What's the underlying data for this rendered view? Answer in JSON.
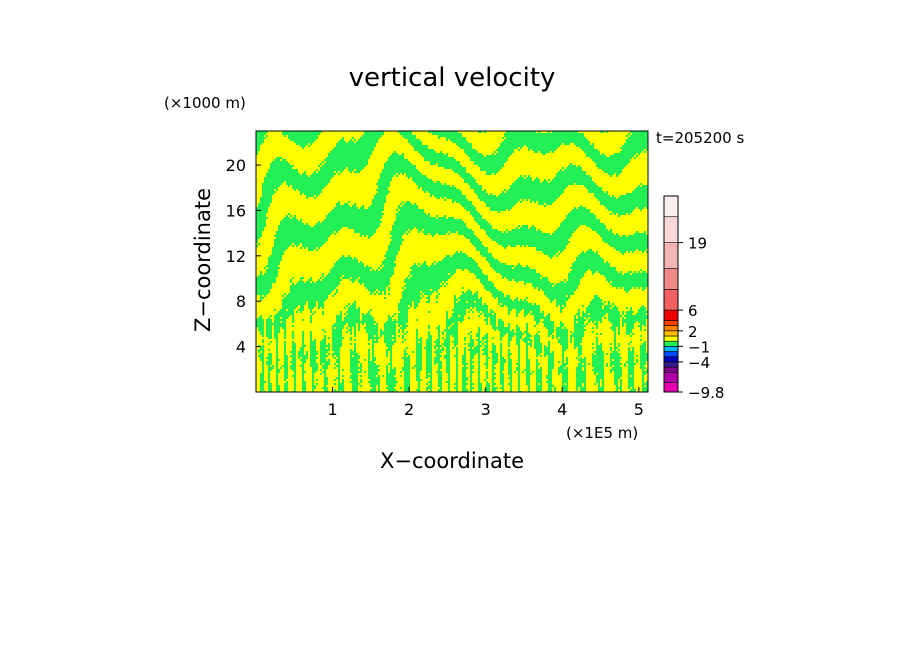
{
  "chart_data": {
    "type": "heatmap",
    "title": "vertical velocity",
    "xlabel": "X−coordinate",
    "ylabel": "Z−coordinate",
    "x_multiplier": "(×1E5 m)",
    "y_multiplier": "(×1000 m)",
    "time_label": "t=205200 s",
    "xlim": [
      0,
      5.12
    ],
    "ylim": [
      0,
      23
    ],
    "x_ticks": [
      {
        "value": 1,
        "label": "1"
      },
      {
        "value": 2,
        "label": "2"
      },
      {
        "value": 3,
        "label": "3"
      },
      {
        "value": 4,
        "label": "4"
      },
      {
        "value": 5,
        "label": "5"
      }
    ],
    "y_ticks": [
      {
        "value": 4,
        "label": "4"
      },
      {
        "value": 8,
        "label": "8"
      },
      {
        "value": 12,
        "label": "12"
      },
      {
        "value": 16,
        "label": "16"
      },
      {
        "value": 20,
        "label": "20"
      }
    ],
    "field_colors": {
      "positive": "#ffff00",
      "negative": "#22ee55"
    },
    "colorbar": {
      "min_label": "−9.8",
      "labels": [
        {
          "value": -9.8,
          "label": "−9.8"
        },
        {
          "value": -4,
          "label": "−4"
        },
        {
          "value": -1,
          "label": "−1"
        },
        {
          "value": 2,
          "label": "2"
        },
        {
          "value": 6,
          "label": "6"
        },
        {
          "value": 19,
          "label": "19"
        }
      ],
      "levels": [
        {
          "from": -9.8,
          "to": -8,
          "color": "#e800b0"
        },
        {
          "from": -8,
          "to": -6,
          "color": "#b000a8"
        },
        {
          "from": -6,
          "to": -5,
          "color": "#80008a"
        },
        {
          "from": -5,
          "to": -4,
          "color": "#3a1890"
        },
        {
          "from": -4,
          "to": -3,
          "color": "#0000c0"
        },
        {
          "from": -3,
          "to": -2,
          "color": "#0048ff"
        },
        {
          "from": -2,
          "to": -1,
          "color": "#00b8ff"
        },
        {
          "from": -1,
          "to": 0,
          "color": "#22ee55"
        },
        {
          "from": 0,
          "to": 1,
          "color": "#ffff00"
        },
        {
          "from": 1,
          "to": 2,
          "color": "#ffc000"
        },
        {
          "from": 2,
          "to": 3,
          "color": "#ff8000"
        },
        {
          "from": 3,
          "to": 4,
          "color": "#ff4000"
        },
        {
          "from": 4,
          "to": 6,
          "color": "#ee0000"
        },
        {
          "from": 6,
          "to": 10,
          "color": "#f06060"
        },
        {
          "from": 10,
          "to": 14,
          "color": "#f08a8a"
        },
        {
          "from": 14,
          "to": 19,
          "color": "#f4b4b4"
        },
        {
          "from": 19,
          "to": 24,
          "color": "#f8d8d8"
        },
        {
          "from": 24,
          "to": 28,
          "color": "#fff0f0"
        }
      ]
    }
  }
}
